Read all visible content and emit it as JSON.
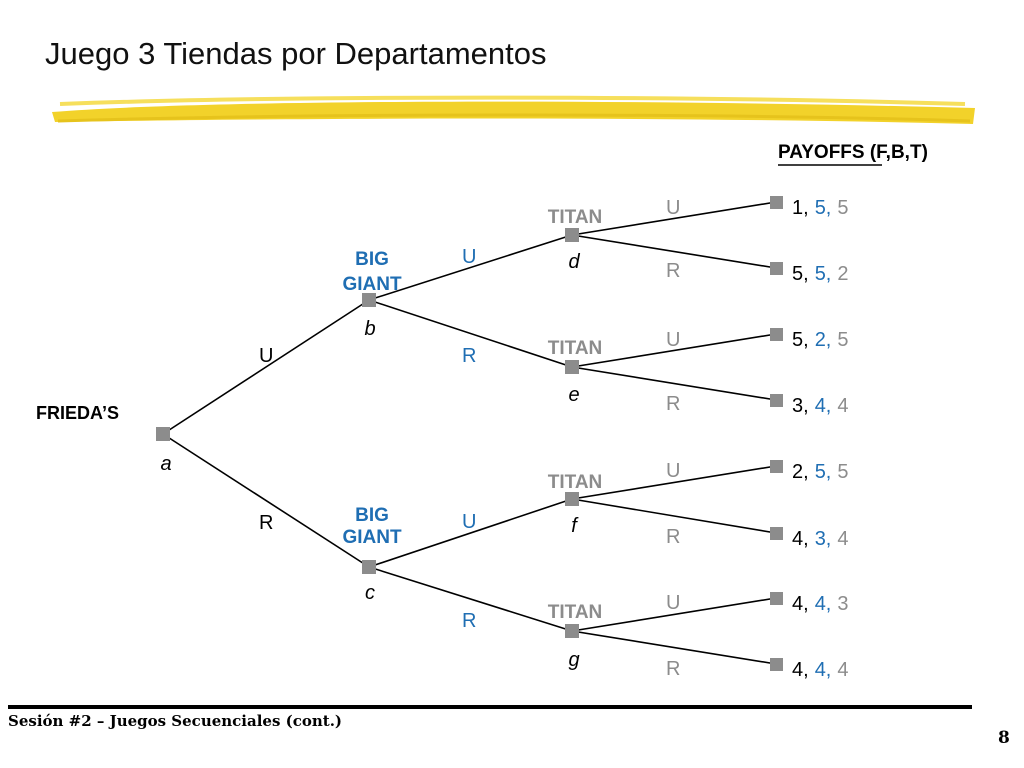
{
  "slide": {
    "title": "Juego 3 Tiendas por Departamentos",
    "footer": "Sesión #2 – Juegos Secuenciales (cont.)",
    "page_number": "8"
  },
  "colors": {
    "frieda": "#000000",
    "big_giant": "#1f6eb3",
    "titan": "#8c8c8c",
    "node": "#8c8c8c",
    "highlight_stripe": "#f2d22a"
  },
  "tree": {
    "payoffs_header": "PAYOFFS (F,B,T)",
    "nodes": {
      "a": {
        "player": "FRIEDA’S",
        "label": "a"
      },
      "b": {
        "player_line1": "BIG",
        "player_line2": "GIANT",
        "label": "b"
      },
      "c": {
        "player_line1": "BIG",
        "player_line2": "GIANT",
        "label": "c"
      },
      "d": {
        "player": "TITAN",
        "label": "d"
      },
      "e": {
        "player": "TITAN",
        "label": "e"
      },
      "f": {
        "player": "TITAN",
        "label": "f"
      },
      "g": {
        "player": "TITAN",
        "label": "g"
      }
    },
    "edge_labels": {
      "a_b": "U",
      "a_c": "R",
      "b_d": "U",
      "b_e": "R",
      "c_f": "U",
      "c_g": "R",
      "d_1": "U",
      "d_2": "R",
      "e_1": "U",
      "e_2": "R",
      "f_1": "U",
      "f_2": "R",
      "g_1": "U",
      "g_2": "R"
    },
    "payoffs": [
      {
        "f": "1,",
        "b": "5,",
        "t": "5"
      },
      {
        "f": "5,",
        "b": "5,",
        "t": "2"
      },
      {
        "f": "5,",
        "b": "2,",
        "t": "5"
      },
      {
        "f": "3,",
        "b": "4,",
        "t": "4"
      },
      {
        "f": "2,",
        "b": "5,",
        "t": "5"
      },
      {
        "f": "4,",
        "b": "3,",
        "t": "4"
      },
      {
        "f": "4,",
        "b": "4,",
        "t": "3"
      },
      {
        "f": "4,",
        "b": "4,",
        "t": "4"
      }
    ]
  }
}
